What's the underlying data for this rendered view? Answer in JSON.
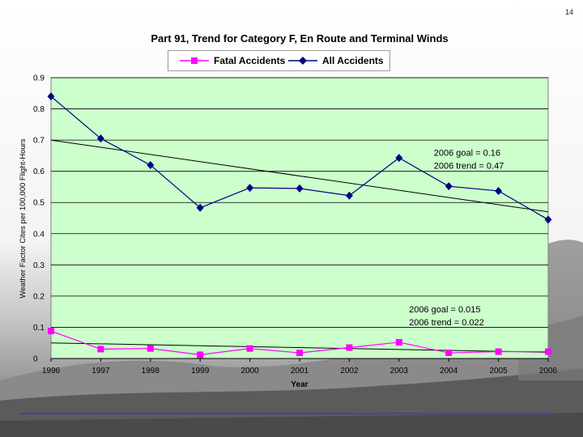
{
  "page_number": "14",
  "colors": {
    "plot_bg": "#ccffcc",
    "all_accidents": "#000080",
    "fatal_accidents": "#ff00ff",
    "trend": "#000000",
    "rule": "#3b47a8"
  },
  "chart_data": {
    "type": "line",
    "title": "Part 91, Trend for Category F,  En Route and Terminal Winds",
    "xlabel": "Year",
    "ylabel": "Weather Factor Cites per 100,000 Flight-Hours",
    "categories": [
      "1996",
      "1997",
      "1998",
      "1999",
      "2000",
      "2001",
      "2002",
      "2003",
      "2004",
      "2005",
      "2006"
    ],
    "yticks": [
      "0",
      "0.1",
      "0.2",
      "0.3",
      "0.4",
      "0.5",
      "0.6",
      "0.7",
      "0.8",
      "0.9"
    ],
    "ylim": [
      0,
      0.9
    ],
    "grid": true,
    "legend": "top-center",
    "series": [
      {
        "name": "Fatal Accidents",
        "marker": "square",
        "values": [
          0.088,
          0.03,
          0.032,
          0.012,
          0.032,
          0.018,
          0.035,
          0.052,
          0.018,
          0.022,
          0.022
        ],
        "trend": [
          0.05,
          0.02
        ]
      },
      {
        "name": "All Accidents",
        "marker": "diamond",
        "values": [
          0.84,
          0.705,
          0.62,
          0.483,
          0.547,
          0.545,
          0.522,
          0.643,
          0.552,
          0.537,
          0.445
        ],
        "trend": [
          0.7,
          0.47
        ]
      }
    ],
    "annotations": [
      {
        "lines": [
          "2006 goal = 0.16",
          "2006 trend = 0.47"
        ],
        "x_index": 7.7,
        "y": 0.65
      },
      {
        "lines": [
          "2006 goal = 0.015",
          "2006 trend = 0.022"
        ],
        "x_index": 7.2,
        "y": 0.148
      }
    ]
  }
}
